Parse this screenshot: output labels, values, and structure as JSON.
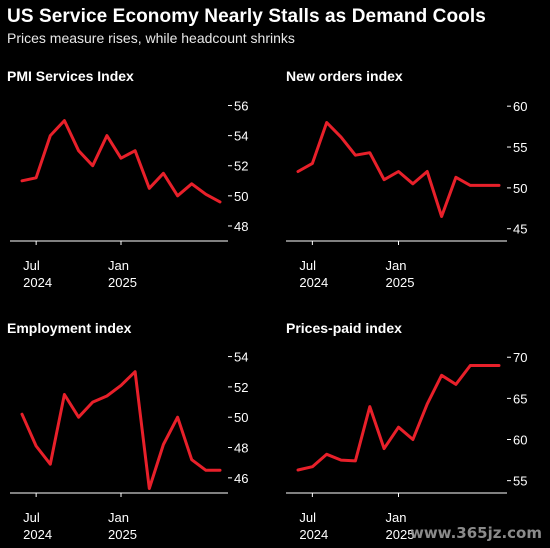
{
  "header": {
    "title": "US Service Economy Nearly Stalls as Demand Cools",
    "subtitle": "Prices measure rises, while headcount shrinks"
  },
  "colors": {
    "background": "#000000",
    "line": "#e8202a",
    "axis": "#ffffff",
    "text": "#ffffff"
  },
  "watermark": "www.365jz.com",
  "chart_data": [
    {
      "type": "line",
      "title": "PMI Services Index",
      "x_ticks": [
        {
          "x": "2024-07",
          "label": "Jul",
          "sublabel": "2024"
        },
        {
          "x": "2025-01",
          "label": "Jan",
          "sublabel": "2025"
        }
      ],
      "x": [
        "2024-06",
        "2024-07",
        "2024-08",
        "2024-09",
        "2024-10",
        "2024-11",
        "2024-12",
        "2025-01",
        "2025-02",
        "2025-03",
        "2025-04",
        "2025-05",
        "2025-06",
        "2025-07",
        "2025-08"
      ],
      "values": [
        51.0,
        51.2,
        54.0,
        55.0,
        53.0,
        52.0,
        54.0,
        52.5,
        53.0,
        50.5,
        51.5,
        50.0,
        50.8,
        50.1,
        49.6
      ],
      "ylim": [
        47,
        56.5
      ],
      "y_ticks": [
        48,
        50,
        52,
        54,
        56
      ],
      "grid": false
    },
    {
      "type": "line",
      "title": "New orders index",
      "x_ticks": [
        {
          "x": "2024-07",
          "label": "Jul",
          "sublabel": "2024"
        },
        {
          "x": "2025-01",
          "label": "Jan",
          "sublabel": "2025"
        }
      ],
      "x": [
        "2024-06",
        "2024-07",
        "2024-08",
        "2024-09",
        "2024-10",
        "2024-11",
        "2024-12",
        "2025-01",
        "2025-02",
        "2025-03",
        "2025-04",
        "2025-05",
        "2025-06",
        "2025-07",
        "2025-08"
      ],
      "values": [
        52.0,
        53.0,
        58.0,
        56.2,
        54.0,
        54.3,
        51.0,
        52.0,
        50.5,
        52.0,
        46.5,
        51.3,
        50.3,
        50.3,
        50.3
      ],
      "ylim": [
        43.5,
        61
      ],
      "y_ticks": [
        45,
        50,
        55,
        60
      ],
      "grid": false
    },
    {
      "type": "line",
      "title": "Employment index",
      "x_ticks": [
        {
          "x": "2024-07",
          "label": "Jul",
          "sublabel": "2024"
        },
        {
          "x": "2025-01",
          "label": "Jan",
          "sublabel": "2025"
        }
      ],
      "x": [
        "2024-06",
        "2024-07",
        "2024-08",
        "2024-09",
        "2024-10",
        "2024-11",
        "2024-12",
        "2025-01",
        "2025-02",
        "2025-03",
        "2025-04",
        "2025-05",
        "2025-06",
        "2025-07",
        "2025-08"
      ],
      "values": [
        50.2,
        48.1,
        46.9,
        51.5,
        50.0,
        51.0,
        51.4,
        52.1,
        53.0,
        45.3,
        48.2,
        50.0,
        47.2,
        46.5,
        46.5
      ],
      "ylim": [
        45,
        54.5
      ],
      "y_ticks": [
        46,
        48,
        50,
        52,
        54
      ],
      "grid": false
    },
    {
      "type": "line",
      "title": "Prices-paid index",
      "x_ticks": [
        {
          "x": "2024-07",
          "label": "Jul",
          "sublabel": "2024"
        },
        {
          "x": "2025-01",
          "label": "Jan",
          "sublabel": "2025"
        }
      ],
      "x": [
        "2024-06",
        "2024-07",
        "2024-08",
        "2024-09",
        "2024-10",
        "2024-11",
        "2024-12",
        "2025-01",
        "2025-02",
        "2025-03",
        "2025-04",
        "2025-05",
        "2025-06",
        "2025-07",
        "2025-08"
      ],
      "values": [
        56.3,
        56.7,
        58.2,
        57.5,
        57.4,
        64.0,
        58.9,
        61.5,
        60.0,
        64.3,
        67.8,
        66.7,
        69.0,
        69.0,
        69.0
      ],
      "ylim": [
        53.5,
        71
      ],
      "y_ticks": [
        55,
        60,
        65,
        70
      ],
      "grid": false
    }
  ]
}
